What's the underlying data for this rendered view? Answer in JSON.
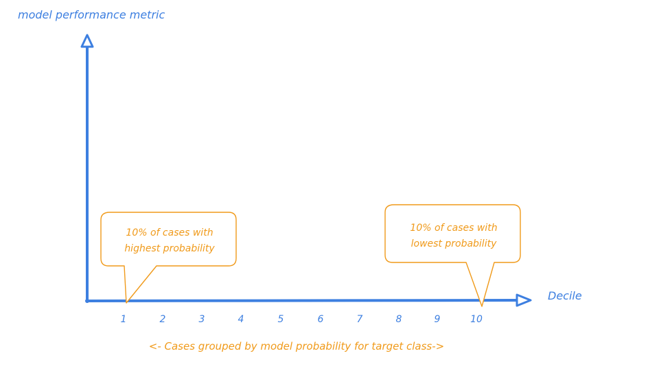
{
  "diagram": {
    "y_axis_label": "model performance metric",
    "x_axis_label": "Decile",
    "deciles": [
      "1",
      "2",
      "3",
      "4",
      "5",
      "6",
      "7",
      "8",
      "9",
      "10"
    ],
    "caption": "<- Cases grouped by model probability for target class->",
    "callout_left": {
      "line1": "10% of cases with",
      "line2": "highest probability"
    },
    "callout_right": {
      "line1": "10% of cases with",
      "line2": "lowest probability"
    },
    "colors": {
      "axis": "#3d7fe0",
      "annotation": "#f09a1a"
    }
  }
}
